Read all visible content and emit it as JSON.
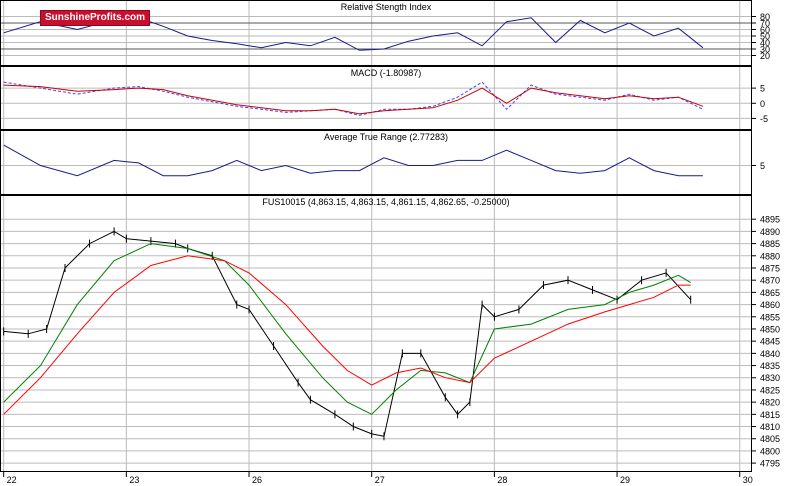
{
  "logo": {
    "text": "SunshineProfits.com"
  },
  "colors": {
    "background": "#ffffff",
    "frame": "#000000",
    "grid": "#bbbbbb",
    "indicator_line": "#1a1a8c",
    "macd_signal": "#4040ff",
    "macd_line": "#cc0000",
    "price_bars": "#000000",
    "ma_short": "#008000",
    "ma_long": "#ff0000",
    "logo_bg": "#c8102e"
  },
  "chart_data": [
    {
      "type": "line",
      "title": "Relative Stength Index",
      "ylim": [
        10,
        90
      ],
      "y_ticks": [
        20,
        30,
        40,
        50,
        60,
        70,
        80
      ],
      "reference_lines": [
        30,
        70
      ],
      "series": [
        {
          "x": [
            0,
            0.3,
            0.6,
            0.9,
            1.1,
            1.3,
            1.5,
            1.7,
            1.9,
            2.1,
            2.3,
            2.5,
            2.7,
            2.9,
            3.1,
            3.3,
            3.5,
            3.7,
            3.9,
            4.1,
            4.3,
            4.5,
            4.7,
            4.9,
            5.1,
            5.3,
            5.5,
            5.7
          ],
          "values": [
            55,
            72,
            60,
            75,
            78,
            65,
            50,
            43,
            38,
            32,
            40,
            35,
            48,
            28,
            30,
            42,
            50,
            55,
            35,
            72,
            78,
            40,
            74,
            55,
            70,
            50,
            62,
            32
          ]
        }
      ]
    },
    {
      "type": "line",
      "title": "MACD (-1.80987)",
      "ylim": [
        -7.5,
        9
      ],
      "y_ticks": [
        -5,
        0,
        5
      ],
      "series": [
        {
          "x": [
            0,
            0.3,
            0.6,
            0.9,
            1.1,
            1.3,
            1.5,
            1.7,
            1.9,
            2.1,
            2.3,
            2.5,
            2.7,
            2.9,
            3.1,
            3.3,
            3.5,
            3.7,
            3.9,
            4.1,
            4.3,
            4.5,
            4.7,
            4.9,
            5.1,
            5.3,
            5.5,
            5.7
          ],
          "values": [
            7,
            5,
            3,
            5,
            5.5,
            4,
            2,
            0.5,
            -1,
            -2,
            -3,
            -2.5,
            -2,
            -4,
            -2,
            -2,
            -1,
            2,
            7,
            -2,
            6,
            3,
            2,
            1,
            3,
            1,
            2,
            -2
          ]
        },
        {
          "x": [
            0,
            0.3,
            0.6,
            0.9,
            1.1,
            1.3,
            1.5,
            1.7,
            1.9,
            2.1,
            2.3,
            2.5,
            2.7,
            2.9,
            3.1,
            3.3,
            3.5,
            3.7,
            3.9,
            4.1,
            4.3,
            4.5,
            4.7,
            4.9,
            5.1,
            5.3,
            5.5,
            5.7
          ],
          "values": [
            6,
            5.5,
            4,
            4.5,
            5,
            4.5,
            2.5,
            1,
            -0.5,
            -1.5,
            -2.5,
            -2.5,
            -2,
            -3.5,
            -2.5,
            -2,
            -1.5,
            1,
            5,
            0,
            5,
            3.5,
            2.5,
            1.5,
            2.5,
            1.5,
            2,
            -1
          ]
        }
      ]
    },
    {
      "type": "line",
      "title": "Average True Range (2.77283)",
      "ylim": [
        0,
        10
      ],
      "y_ticks": [
        5
      ],
      "series": [
        {
          "x": [
            0,
            0.3,
            0.6,
            0.9,
            1.1,
            1.3,
            1.5,
            1.7,
            1.9,
            2.1,
            2.3,
            2.5,
            2.7,
            2.9,
            3.1,
            3.3,
            3.5,
            3.7,
            3.9,
            4.1,
            4.3,
            4.5,
            4.7,
            4.9,
            5.1,
            5.3,
            5.5,
            5.7
          ],
          "values": [
            9,
            5,
            3,
            6,
            5.5,
            3,
            3,
            4,
            6,
            4,
            5,
            3.5,
            4,
            4,
            6.5,
            5,
            5,
            6,
            6,
            8,
            6,
            4,
            3.5,
            4,
            6.5,
            4,
            3,
            3
          ]
        }
      ]
    },
    {
      "type": "line",
      "title": "FUS10015 (4,863.15, 4,863.15, 4,861.15, 4,862.65, -0.25000)",
      "ylim": [
        4793,
        4900
      ],
      "y_ticks": [
        4795,
        4800,
        4805,
        4810,
        4815,
        4820,
        4825,
        4830,
        4835,
        4840,
        4845,
        4850,
        4855,
        4860,
        4865,
        4870,
        4875,
        4880,
        4885,
        4890,
        4895
      ],
      "x_ticks": [
        {
          "x": 0,
          "label": "22"
        },
        {
          "x": 1,
          "label": "23"
        },
        {
          "x": 2,
          "label": "26"
        },
        {
          "x": 3,
          "label": "27"
        },
        {
          "x": 4,
          "label": "28"
        },
        {
          "x": 5,
          "label": "29"
        },
        {
          "x": 6,
          "label": "30"
        }
      ],
      "xlim": [
        -0.03,
        6.1
      ],
      "series": [
        {
          "name": "",
          "style": "price",
          "x": [
            0,
            0.2,
            0.35,
            0.5,
            0.7,
            0.9,
            1.0,
            1.2,
            1.4,
            1.5,
            1.7,
            1.9,
            2.0,
            2.2,
            2.4,
            2.5,
            2.7,
            2.85,
            3.0,
            3.1,
            3.25,
            3.4,
            3.6,
            3.7,
            3.8,
            3.9,
            4.0,
            4.2,
            4.4,
            4.6,
            4.8,
            5.0,
            5.2,
            5.4,
            5.6
          ],
          "values": [
            4849,
            4848,
            4850,
            4875,
            4885,
            4890,
            4887,
            4886,
            4885,
            4883,
            4880,
            4860,
            4858,
            4843,
            4828,
            4821,
            4815,
            4810,
            4807,
            4806,
            4840,
            4840,
            4822,
            4815,
            4820,
            4860,
            4855,
            4858,
            4868,
            4870,
            4866,
            4862,
            4870,
            4873,
            4862
          ]
        },
        {
          "name": "",
          "style": "ma_short",
          "x": [
            0,
            0.3,
            0.6,
            0.9,
            1.2,
            1.5,
            1.8,
            2.0,
            2.3,
            2.6,
            2.8,
            3.0,
            3.2,
            3.4,
            3.6,
            3.8,
            4.0,
            4.3,
            4.6,
            4.9,
            5.1,
            5.3,
            5.5,
            5.6
          ],
          "values": [
            4820,
            4835,
            4860,
            4878,
            4885,
            4883,
            4878,
            4868,
            4848,
            4830,
            4820,
            4815,
            4825,
            4833,
            4832,
            4828,
            4850,
            4852,
            4858,
            4860,
            4865,
            4868,
            4872,
            4869
          ]
        },
        {
          "name": "",
          "style": "ma_long",
          "x": [
            0,
            0.3,
            0.6,
            0.9,
            1.2,
            1.5,
            1.8,
            2.0,
            2.3,
            2.6,
            2.8,
            3.0,
            3.2,
            3.4,
            3.6,
            3.8,
            4.0,
            4.3,
            4.6,
            4.9,
            5.1,
            5.3,
            5.5,
            5.6
          ],
          "values": [
            4815,
            4830,
            4848,
            4865,
            4876,
            4880,
            4878,
            4873,
            4860,
            4843,
            4833,
            4827,
            4832,
            4834,
            4830,
            4828,
            4838,
            4845,
            4852,
            4857,
            4860,
            4863,
            4868,
            4868
          ]
        }
      ]
    }
  ]
}
